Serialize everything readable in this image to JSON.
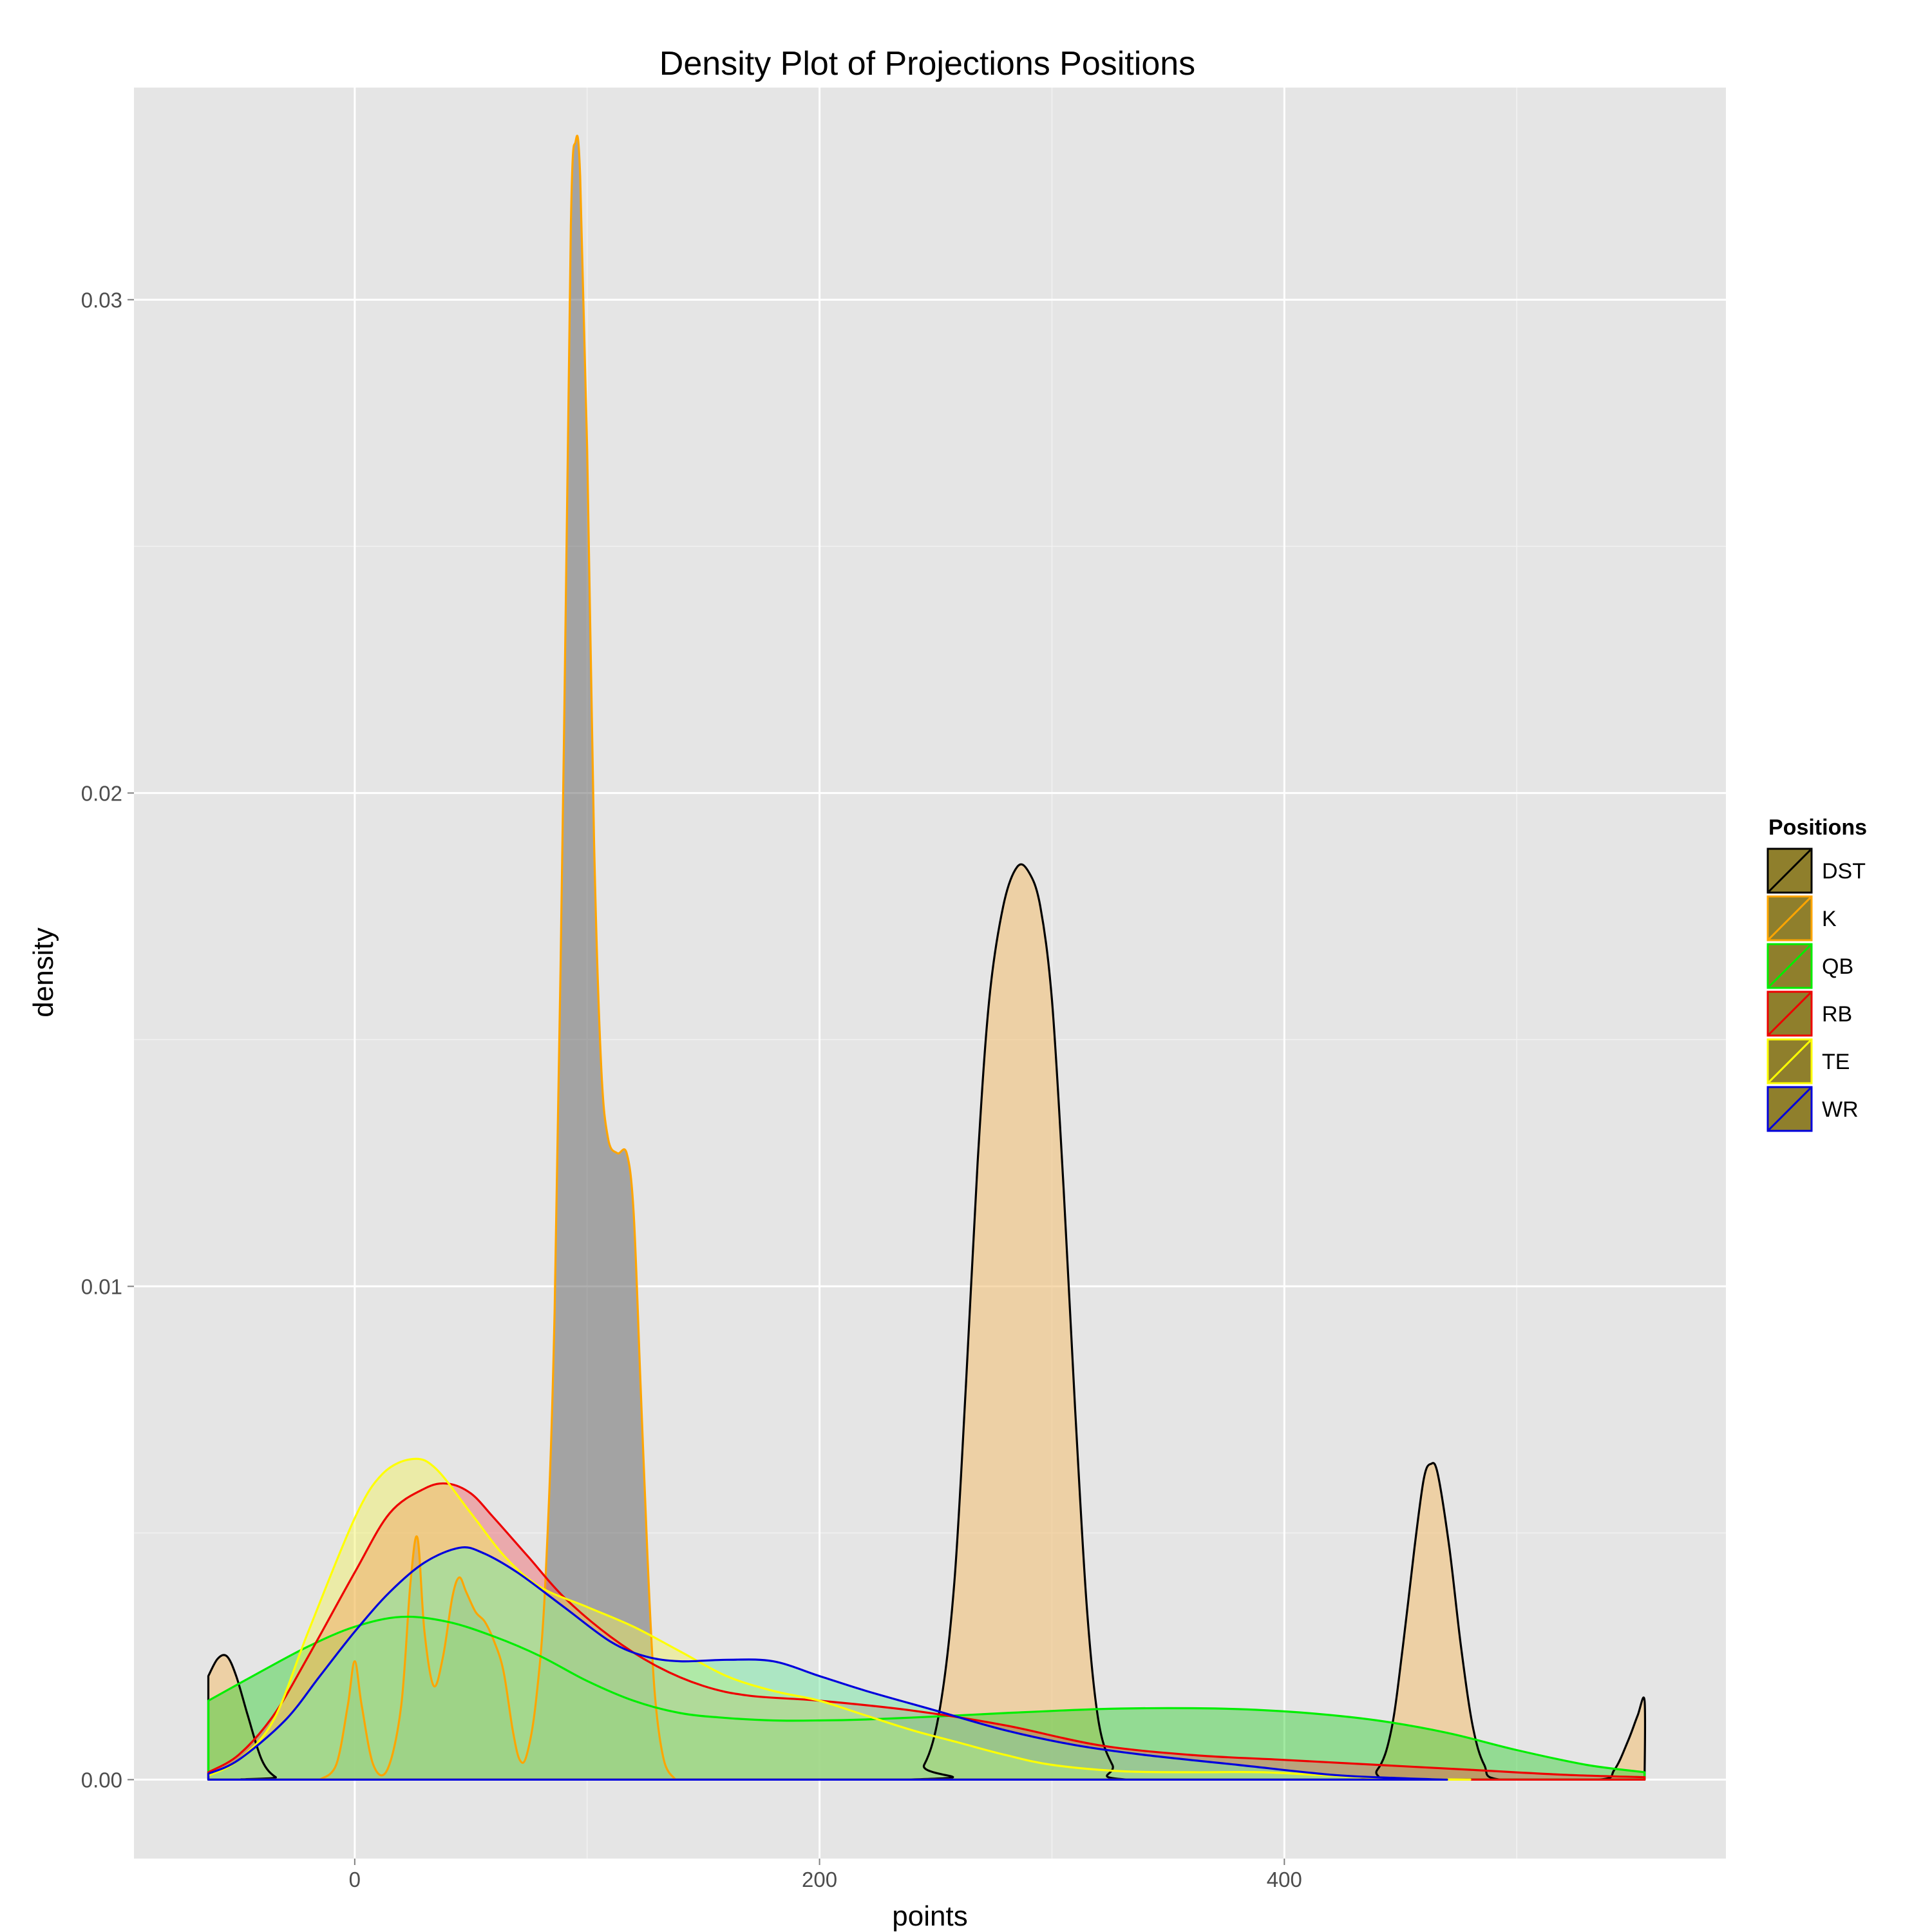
{
  "chart_data": {
    "type": "area",
    "title": "Density Plot of Projections Positions",
    "xlabel": "points",
    "ylabel": "density",
    "xlim": [
      -95,
      590
    ],
    "ylim": [
      -0.0016,
      0.0343
    ],
    "x_ticks": [
      0,
      200,
      400
    ],
    "x_tick_labels": [
      "0",
      "200",
      "400"
    ],
    "y_ticks": [
      0.0,
      0.01,
      0.02,
      0.03
    ],
    "y_tick_labels": [
      "0.00",
      "0.01",
      "0.02",
      "0.03"
    ],
    "grid": true,
    "legend": {
      "title": "Positions",
      "position": "right"
    },
    "background_color": "#e5e5e5",
    "legend_key_fill": "#8f7f2c",
    "series": [
      {
        "name": "DST",
        "line_color": "#000000",
        "fill_color": "#f2c47e",
        "fill_opacity": 0.62,
        "points": [
          [
            -63,
            0.0021
          ],
          [
            -59,
            0.00245
          ],
          [
            -55,
            0.0025
          ],
          [
            -51,
            0.0021
          ],
          [
            -46,
            0.0013
          ],
          [
            -40,
            0.0004
          ],
          [
            -34,
            5e-05
          ],
          [
            -28,
            0
          ],
          [
            235,
            0
          ],
          [
            245,
            0.0003
          ],
          [
            252,
            0.0015
          ],
          [
            258,
            0.004
          ],
          [
            263,
            0.008
          ],
          [
            268,
            0.0125
          ],
          [
            273,
            0.0158
          ],
          [
            279,
            0.0177
          ],
          [
            285,
            0.0185
          ],
          [
            290,
            0.0184
          ],
          [
            295,
            0.0177
          ],
          [
            300,
            0.0158
          ],
          [
            305,
            0.012
          ],
          [
            310,
            0.0075
          ],
          [
            315,
            0.0035
          ],
          [
            320,
            0.0012
          ],
          [
            326,
            0.0003
          ],
          [
            333,
            0
          ],
          [
            430,
            0
          ],
          [
            440,
            0.0002
          ],
          [
            446,
            0.001
          ],
          [
            451,
            0.0027
          ],
          [
            456,
            0.0047
          ],
          [
            460,
            0.0061
          ],
          [
            463,
            0.0064
          ],
          [
            466,
            0.0062
          ],
          [
            471,
            0.0047
          ],
          [
            476,
            0.0027
          ],
          [
            481,
            0.0011
          ],
          [
            486,
            0.0003
          ],
          [
            493,
            0
          ],
          [
            535,
            0
          ],
          [
            542,
            0.0002
          ],
          [
            548,
            0.0008
          ],
          [
            552,
            0.0013
          ],
          [
            555,
            0.0016
          ],
          [
            555,
            0
          ]
        ]
      },
      {
        "name": "K",
        "line_color": "#ffa500",
        "fill_color": "#6e6e6e",
        "fill_opacity": 0.55,
        "points": [
          [
            -15,
            0
          ],
          [
            -8,
            0.0003
          ],
          [
            -3,
            0.0015
          ],
          [
            0,
            0.0024
          ],
          [
            3,
            0.0015
          ],
          [
            8,
            0.0003
          ],
          [
            14,
            0.0002
          ],
          [
            20,
            0.0015
          ],
          [
            24,
            0.004
          ],
          [
            27,
            0.0049
          ],
          [
            30,
            0.003
          ],
          [
            34,
            0.0019
          ],
          [
            38,
            0.0025
          ],
          [
            42,
            0.0037
          ],
          [
            45,
            0.0041
          ],
          [
            48,
            0.0038
          ],
          [
            52,
            0.0034
          ],
          [
            56,
            0.0032
          ],
          [
            60,
            0.0028
          ],
          [
            64,
            0.0022
          ],
          [
            68,
            0.001
          ],
          [
            71,
            0.0004
          ],
          [
            74,
            0.0005
          ],
          [
            78,
            0.0016
          ],
          [
            82,
            0.004
          ],
          [
            86,
            0.0095
          ],
          [
            90,
            0.021
          ],
          [
            93,
            0.0315
          ],
          [
            95,
            0.0332
          ],
          [
            97,
            0.0325
          ],
          [
            100,
            0.027
          ],
          [
            103,
            0.019
          ],
          [
            106,
            0.0145
          ],
          [
            109,
            0.013
          ],
          [
            113,
            0.0127
          ],
          [
            117,
            0.0127
          ],
          [
            120,
            0.0115
          ],
          [
            123,
            0.008
          ],
          [
            126,
            0.0045
          ],
          [
            129,
            0.0018
          ],
          [
            133,
            0.0004
          ],
          [
            138,
            0
          ]
        ]
      },
      {
        "name": "QB",
        "line_color": "#00ee00",
        "fill_color": "#22cc22",
        "fill_opacity": 0.42,
        "points": [
          [
            -63,
            0.0016
          ],
          [
            -40,
            0.0022
          ],
          [
            -20,
            0.0027
          ],
          [
            0,
            0.0031
          ],
          [
            20,
            0.0033
          ],
          [
            40,
            0.0032
          ],
          [
            60,
            0.0029
          ],
          [
            80,
            0.0025
          ],
          [
            100,
            0.002
          ],
          [
            120,
            0.0016
          ],
          [
            140,
            0.00135
          ],
          [
            160,
            0.00125
          ],
          [
            180,
            0.0012
          ],
          [
            200,
            0.0012
          ],
          [
            220,
            0.00122
          ],
          [
            250,
            0.00128
          ],
          [
            280,
            0.00135
          ],
          [
            320,
            0.00143
          ],
          [
            350,
            0.00145
          ],
          [
            380,
            0.00143
          ],
          [
            410,
            0.00135
          ],
          [
            440,
            0.0012
          ],
          [
            470,
            0.00095
          ],
          [
            500,
            0.0006
          ],
          [
            530,
            0.0003
          ],
          [
            555,
            0.00015
          ]
        ]
      },
      {
        "name": "RB",
        "line_color": "#ee0000",
        "fill_color": "#f0565e",
        "fill_opacity": 0.42,
        "points": [
          [
            -63,
            0.00015
          ],
          [
            -50,
            0.0005
          ],
          [
            -35,
            0.0013
          ],
          [
            -20,
            0.0025
          ],
          [
            0,
            0.0042
          ],
          [
            15,
            0.0054
          ],
          [
            30,
            0.0059
          ],
          [
            40,
            0.006
          ],
          [
            50,
            0.0058
          ],
          [
            60,
            0.0053
          ],
          [
            75,
            0.0045
          ],
          [
            90,
            0.0037
          ],
          [
            110,
            0.0029
          ],
          [
            130,
            0.0023
          ],
          [
            150,
            0.0019
          ],
          [
            170,
            0.0017
          ],
          [
            200,
            0.0016
          ],
          [
            240,
            0.0014
          ],
          [
            280,
            0.0011
          ],
          [
            320,
            0.0007
          ],
          [
            360,
            0.0005
          ],
          [
            400,
            0.0004
          ],
          [
            440,
            0.0003
          ],
          [
            480,
            0.0002
          ],
          [
            520,
            0.0001
          ],
          [
            555,
            5e-05
          ]
        ]
      },
      {
        "name": "TE",
        "line_color": "#ffff00",
        "fill_color": "#f2f25a",
        "fill_opacity": 0.45,
        "points": [
          [
            -63,
            8e-05
          ],
          [
            -50,
            0.0004
          ],
          [
            -35,
            0.0012
          ],
          [
            -20,
            0.003
          ],
          [
            0,
            0.0053
          ],
          [
            12,
            0.0062
          ],
          [
            25,
            0.0065
          ],
          [
            35,
            0.0063
          ],
          [
            50,
            0.0054
          ],
          [
            65,
            0.0045
          ],
          [
            80,
            0.0039
          ],
          [
            100,
            0.0035
          ],
          [
            120,
            0.0031
          ],
          [
            140,
            0.0026
          ],
          [
            160,
            0.0021
          ],
          [
            180,
            0.0018
          ],
          [
            200,
            0.0016
          ],
          [
            220,
            0.0013
          ],
          [
            240,
            0.001
          ],
          [
            260,
            0.00075
          ],
          [
            280,
            0.0005
          ],
          [
            300,
            0.0003
          ],
          [
            330,
            0.00017
          ],
          [
            360,
            0.00015
          ],
          [
            390,
            0.00015
          ],
          [
            420,
            8e-05
          ],
          [
            450,
            2e-05
          ],
          [
            480,
            0
          ]
        ]
      },
      {
        "name": "WR",
        "line_color": "#0000dd",
        "fill_color": "#7de8a8",
        "fill_opacity": 0.55,
        "points": [
          [
            -63,
            0.00012
          ],
          [
            -50,
            0.0004
          ],
          [
            -30,
            0.0012
          ],
          [
            -15,
            0.0021
          ],
          [
            0,
            0.003
          ],
          [
            15,
            0.0038
          ],
          [
            30,
            0.0044
          ],
          [
            45,
            0.0047
          ],
          [
            55,
            0.0046
          ],
          [
            70,
            0.0042
          ],
          [
            90,
            0.0035
          ],
          [
            110,
            0.0028
          ],
          [
            125,
            0.0025
          ],
          [
            140,
            0.0024
          ],
          [
            160,
            0.00243
          ],
          [
            180,
            0.0024
          ],
          [
            200,
            0.0021
          ],
          [
            220,
            0.0018
          ],
          [
            250,
            0.0014
          ],
          [
            280,
            0.001
          ],
          [
            310,
            0.0007
          ],
          [
            340,
            0.0005
          ],
          [
            380,
            0.0003
          ],
          [
            420,
            0.0001
          ],
          [
            450,
            3e-05
          ],
          [
            470,
            0
          ]
        ]
      }
    ]
  }
}
